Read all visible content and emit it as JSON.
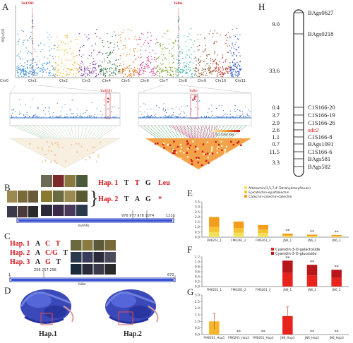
{
  "panels": {
    "A": "A",
    "B": "B",
    "C": "C",
    "D": "D",
    "E": "E",
    "F": "F",
    "G": "G",
    "H": "H"
  },
  "manhattan": {
    "ylabel": "-log₁₀(p)",
    "peak_left": "VaANR1",
    "peak_right": "VaBm",
    "chromosomes": [
      "Chr0",
      "Chr1",
      "Chr2",
      "Chr3",
      "Chr4",
      "Chr5",
      "Chr6",
      "Chr7",
      "Chr8",
      "Chr9",
      "Chr10",
      "Chr11"
    ],
    "chr_colors": [
      "#3a8fd9",
      "#3a8fd9",
      "#e6b422",
      "#7a3aa0",
      "#2f6b3a",
      "#e67a22",
      "#d23c8a",
      "#7b9a1e",
      "#3ab8b0",
      "#8a5a2a",
      "#c0392b",
      "#2b59c3"
    ],
    "zoom_left_label": "VaANR1",
    "zoom_right_label": "VaBm",
    "ld_legend": "LD Color Key"
  },
  "panelB": {
    "hap1": {
      "label": "Hap. 1",
      "bases": [
        "T",
        "T",
        "G"
      ],
      "aa": "Leu"
    },
    "hap2": {
      "label": "Hap. 2",
      "bases": [
        "T",
        "A",
        "G"
      ],
      "aa": "*"
    },
    "positions": "976 977 978 1074",
    "start": "1",
    "end": "1210",
    "gene": "VaANR1"
  },
  "panelC": {
    "hap1": {
      "label": "Hap. 1",
      "bases": [
        "A",
        "C",
        "T"
      ]
    },
    "hap2": {
      "label": "Hap. 2",
      "bases": [
        "A",
        "C/G",
        "T"
      ]
    },
    "hap3": {
      "label": "Hap. 3",
      "bases": [
        "A",
        "G",
        "T"
      ]
    },
    "positions": "256 257 258",
    "start": "1",
    "end": "672",
    "gene": "VaBm"
  },
  "panelD": {
    "hap1": "Hap.1",
    "hap2": "Hap.2"
  },
  "chart_data": [
    {
      "type": "bar",
      "panel": "E",
      "categories": [
        "FM6261_1",
        "FM6261_2",
        "FM6261_3",
        "JN6_1",
        "JN6_2",
        "JN6_3"
      ],
      "series": [
        {
          "name": "Afzelechin(3,5,7,4'-Tetrahydroxyflavan)",
          "color": "#f3e05a",
          "values": [
            0.5,
            0.45,
            0.4,
            0.08,
            0.06,
            0.05
          ]
        },
        {
          "name": "Epicatechin-epiafzelechin",
          "color": "#f5c330",
          "values": [
            0.5,
            0.45,
            0.35,
            0.1,
            0.08,
            0.07
          ]
        },
        {
          "name": "Catechin-catechin-catechin",
          "color": "#f29e1c",
          "values": [
            1.0,
            0.65,
            0.45,
            0.17,
            0.11,
            0.1
          ]
        }
      ],
      "ylim": [
        0,
        3.5
      ],
      "yticks": [
        "0.0",
        "0.5",
        "1.0",
        "1.5",
        "2.0",
        "2.5",
        "3.0",
        "3.5"
      ],
      "sig": [
        "",
        "",
        "",
        "**",
        "**",
        "**"
      ]
    },
    {
      "type": "bar",
      "panel": "F",
      "categories": [
        "FM6261_1",
        "FM6261_2",
        "FM6261_3",
        "JN6_1",
        "JN6_2",
        "JN6_3"
      ],
      "series": [
        {
          "name": "Cyanidin-3-O-galactoside",
          "color": "#e8231e",
          "values": [
            0,
            0,
            0,
            0.55,
            0.45,
            0.35
          ]
        },
        {
          "name": "Cyanidin-3-O-glucoside",
          "color": "#b8171a",
          "values": [
            0,
            0,
            0,
            0.5,
            0.43,
            0.33
          ]
        }
      ],
      "ylim": [
        0,
        1.2
      ],
      "yticks": [
        "0.0",
        "0.2",
        "0.4",
        "0.6",
        "0.8",
        "1.0",
        "1.2"
      ],
      "sig": [
        "",
        "",
        "",
        "**",
        "**",
        "**"
      ]
    },
    {
      "type": "bar",
      "panel": "G",
      "categories": [
        "FM6261_Hap1",
        "FM6261_Hap2",
        "FM6261_Hap3",
        "JN6_Hap1",
        "JN6_Hap2",
        "JN6_Hap3"
      ],
      "series": [
        {
          "name": "",
          "values": [
            1.0,
            0,
            0,
            1.4,
            0,
            0
          ],
          "colors": [
            "#f5b62a",
            "#f5b62a",
            "#f5b62a",
            "#e8231e",
            "#e8231e",
            "#e8231e"
          ]
        }
      ],
      "errors": [
        0.6,
        0,
        0,
        0.7,
        0,
        0
      ],
      "ylim": [
        0,
        3.0
      ],
      "yticks": [
        "0.0",
        "0.5",
        "1.0",
        "1.5",
        "2.0",
        "2.5",
        "3.0"
      ],
      "sig": [
        "",
        "**",
        "**",
        "",
        "**",
        "**"
      ]
    }
  ],
  "linkage": {
    "distances": [
      "9.0",
      "33.6",
      "0.4",
      "3.7",
      "2.9",
      "2.6",
      "1.1",
      "0.7",
      "11.5",
      "3.3"
    ],
    "markers": [
      {
        "name": "BAgs0627",
        "red": false
      },
      {
        "name": "BAgs0218",
        "red": false
      },
      {
        "name": "C1S166-20",
        "red": false
      },
      {
        "name": "C1S166-19",
        "red": false
      },
      {
        "name": "C1S166-26",
        "red": false
      },
      {
        "name": "sdc2",
        "red": true
      },
      {
        "name": "C1S166-8",
        "red": false
      },
      {
        "name": "BAgs1091",
        "red": false
      },
      {
        "name": "C1S166-6",
        "red": false
      },
      {
        "name": "BAgs581",
        "red": false
      },
      {
        "name": "BAgs582",
        "red": false
      }
    ]
  }
}
